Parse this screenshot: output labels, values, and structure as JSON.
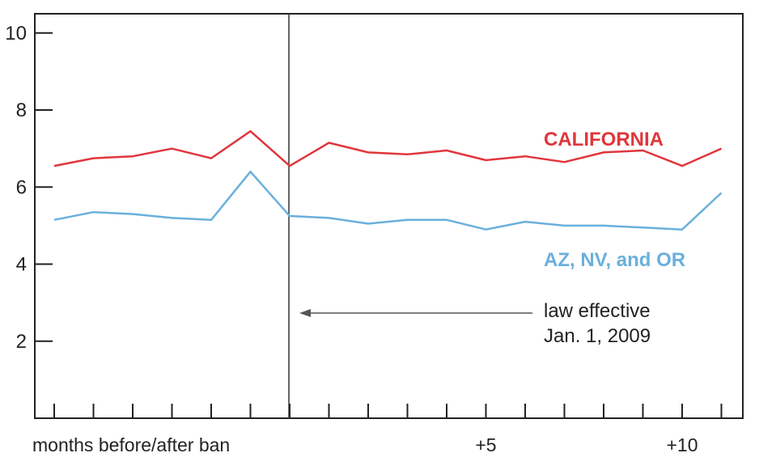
{
  "chart_data": {
    "type": "line",
    "x": [
      -6,
      -5,
      -4,
      -3,
      -2,
      -1,
      0,
      1,
      2,
      3,
      4,
      5,
      6,
      7,
      8,
      9,
      10,
      11
    ],
    "x_tick_labels": [
      {
        "x": 5,
        "label": "+5"
      },
      {
        "x": 10,
        "label": "+10"
      }
    ],
    "xlabel": "months before/after ban",
    "ylim": [
      0,
      10.5
    ],
    "y_ticks": [
      2,
      4,
      6,
      8,
      10
    ],
    "y_tick_labels": [
      "2",
      "4",
      "6",
      "8",
      "10"
    ],
    "series": [
      {
        "name": "CALIFORNIA",
        "color": "#e0363c",
        "values": [
          6.55,
          6.75,
          6.8,
          7.0,
          6.75,
          7.45,
          6.55,
          7.15,
          6.9,
          6.85,
          6.95,
          6.7,
          6.8,
          6.65,
          6.9,
          6.95,
          6.55,
          7.0
        ]
      },
      {
        "name": "AZ, NV, and OR",
        "color": "#6ab0dc",
        "values": [
          5.15,
          5.35,
          5.3,
          5.2,
          5.15,
          6.4,
          5.25,
          5.2,
          5.05,
          5.15,
          5.15,
          4.9,
          5.1,
          5.0,
          5.0,
          4.95,
          4.9,
          5.85
        ]
      }
    ],
    "annotations": {
      "vertical_line_x": -0.02,
      "law_label_line1": "law effective",
      "law_label_line2": "Jan. 1, 2009"
    },
    "grid": false
  }
}
